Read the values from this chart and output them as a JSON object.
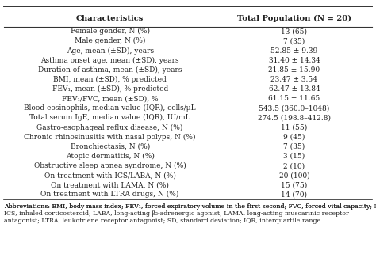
{
  "col1_header": "Characteristics",
  "col2_header": "Total Population (N = 20)",
  "rows": [
    [
      "Female gender, N (%)",
      "13 (65)"
    ],
    [
      "Male gender, N (%)",
      "7 (35)"
    ],
    [
      "Age, mean (±SD), years",
      "52.85 ± 9.39"
    ],
    [
      "Asthma onset age, mean (±SD), years",
      "31.40 ± 14.34"
    ],
    [
      "Duration of asthma, mean (±SD), years",
      "21.85 ± 15.90"
    ],
    [
      "BMI, mean (±SD), % predicted",
      "23.47 ± 3.54"
    ],
    [
      "FEV₁, mean (±SD), % predicted",
      "62.47 ± 13.84"
    ],
    [
      "FEV₁/FVC, mean (±SD), %",
      "61.15 ± 11.65"
    ],
    [
      "Blood eosinophils, median value (IQR), cells/μL",
      "543.5 (360.0–1048)"
    ],
    [
      "Total serum IgE, median value (IQR), IU/mL",
      "274.5 (198.8–412.8)"
    ],
    [
      "Gastro-esophageal reflux disease, N (%)",
      "11 (55)"
    ],
    [
      "Chronic rhinosinusitis with nasal polyps, N (%)",
      "9 (45)"
    ],
    [
      "Bronchiectasis, N (%)",
      "7 (35)"
    ],
    [
      "Atopic dermatitis, N (%)",
      "3 (15)"
    ],
    [
      "Obstructive sleep apnea syndrome, N (%)",
      "2 (10)"
    ],
    [
      "On treatment with ICS/LABA, N (%)",
      "20 (100)"
    ],
    [
      "On treatment with LAMA, N (%)",
      "15 (75)"
    ],
    [
      "On treatment with LTRA drugs, N (%)",
      "14 (70)"
    ]
  ],
  "footnote_parts": [
    [
      "Abbreviations: ",
      false
    ],
    [
      "BMI, body mass index; FEV",
      false
    ],
    [
      "1",
      true
    ],
    [
      ", forced expiratory volume in the first second; FVC, forced vital capacity; ICS, inhaled corticosteroid; LABA, long-acting β",
      false
    ],
    [
      "2",
      true
    ],
    [
      "-adrenergic agonist; LAMA, long-acting muscarinic receptor antagonist; LTRA, leukotriene receptor antagonist; SD, standard deviation; IQR, interquartile range.",
      false
    ]
  ],
  "bg_color": "#ffffff",
  "text_color": "#222222",
  "line_color": "#555555",
  "font_size": 6.5,
  "header_font_size": 7.2,
  "footnote_font_size": 5.6,
  "col_split": 0.575
}
